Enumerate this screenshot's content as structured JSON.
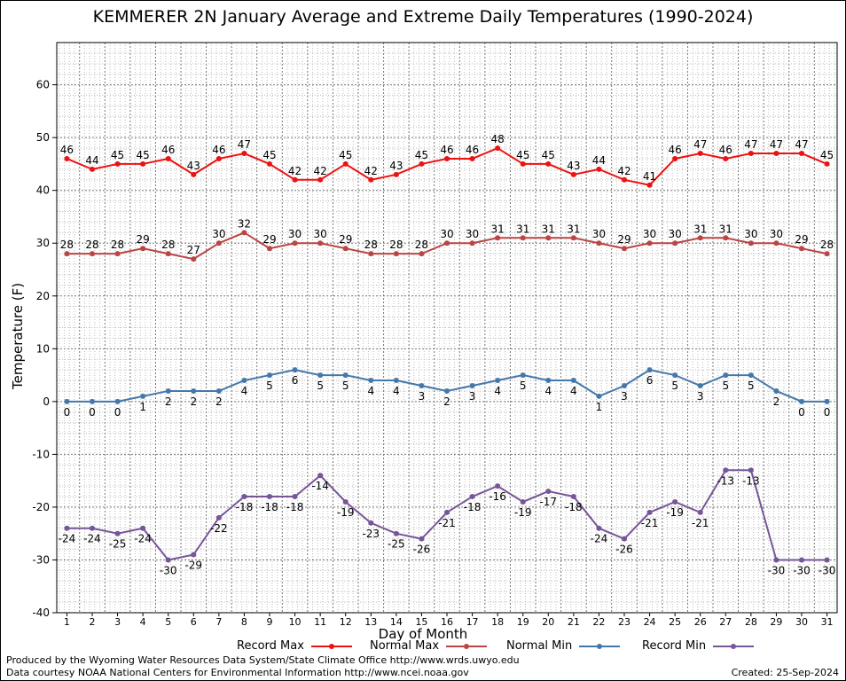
{
  "chart_data": {
    "type": "line",
    "title": "KEMMERER 2N January Average and Extreme Daily Temperatures (1990-2024)",
    "xlabel": "Day of Month",
    "ylabel": "Temperature (F)",
    "x": [
      1,
      2,
      3,
      4,
      5,
      6,
      7,
      8,
      9,
      10,
      11,
      12,
      13,
      14,
      15,
      16,
      17,
      18,
      19,
      20,
      21,
      22,
      23,
      24,
      25,
      26,
      27,
      28,
      29,
      30,
      31
    ],
    "xlim": [
      0.6,
      31.4
    ],
    "ylim": [
      -40,
      68
    ],
    "yticks": [
      -40,
      -30,
      -20,
      -10,
      0,
      10,
      20,
      30,
      40,
      50,
      60
    ],
    "grid": true,
    "series": [
      {
        "name": "Record Max",
        "color": "#ee1111",
        "label_position": "above",
        "values": [
          46,
          44,
          45,
          45,
          46,
          43,
          46,
          47,
          45,
          42,
          42,
          45,
          42,
          43,
          45,
          46,
          46,
          48,
          45,
          45,
          43,
          44,
          42,
          41,
          46,
          47,
          46,
          47,
          47,
          47,
          45
        ]
      },
      {
        "name": "Normal Max",
        "color": "#bb4444",
        "label_position": "above",
        "values": [
          28,
          28,
          28,
          29,
          28,
          27,
          30,
          32,
          29,
          30,
          30,
          29,
          28,
          28,
          28,
          30,
          30,
          31,
          31,
          31,
          31,
          30,
          29,
          30,
          30,
          31,
          31,
          30,
          30,
          29,
          28
        ]
      },
      {
        "name": "Normal Min",
        "color": "#4477aa",
        "label_position": "below",
        "values": [
          0,
          0,
          0,
          1,
          2,
          2,
          2,
          4,
          5,
          6,
          5,
          5,
          4,
          4,
          3,
          2,
          3,
          4,
          5,
          4,
          4,
          1,
          3,
          6,
          5,
          3,
          5,
          5,
          2,
          0,
          0
        ]
      },
      {
        "name": "Record Min",
        "color": "#775599",
        "label_position": "below",
        "values": [
          -24,
          -24,
          -25,
          -24,
          -30,
          -29,
          -22,
          -18,
          -18,
          -18,
          -14,
          -19,
          -23,
          -25,
          -26,
          -21,
          -18,
          -16,
          -19,
          -17,
          -18,
          -24,
          -26,
          -21,
          -19,
          -21,
          -13,
          -13,
          -30,
          -30,
          -30
        ]
      }
    ],
    "legend_placement": "bottom"
  },
  "footer": {
    "produced_by": "Produced by the Wyoming Water Resources Data System/State Climate Office http://www.wrds.uwyo.edu",
    "data_courtesy": "Data courtesy NOAA National Centers for Environmental Information http://www.ncei.noaa.gov",
    "created": "Created:  25-Sep-2024"
  }
}
